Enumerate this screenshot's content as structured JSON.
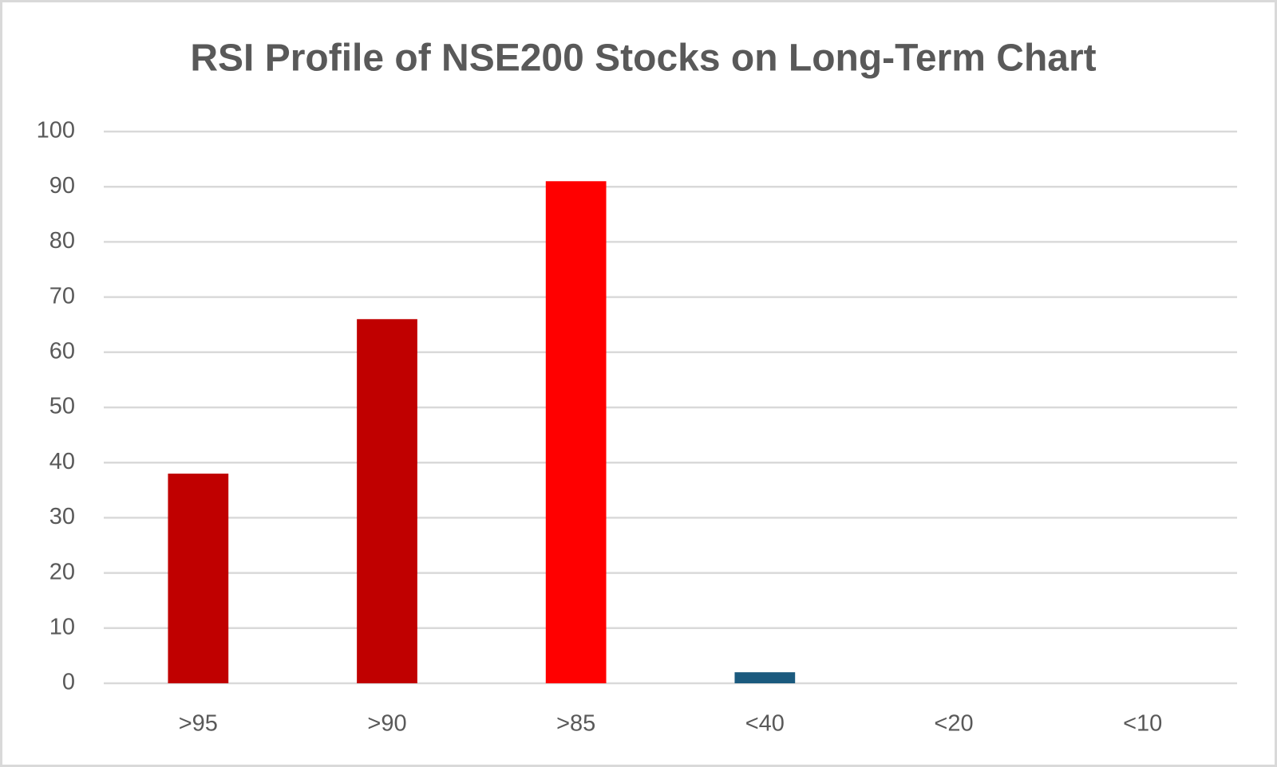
{
  "chart_data": {
    "type": "bar",
    "title": "RSI Profile of NSE200 Stocks on Long-Term Chart",
    "categories": [
      ">95",
      ">90",
      ">85",
      "<40",
      "<20",
      "<10"
    ],
    "values": [
      38,
      66,
      91,
      2,
      0,
      0
    ],
    "colors": [
      "#c00000",
      "#c00000",
      "#ff0000",
      "#1b5a7e",
      "#1b5a7e",
      "#1b5a7e"
    ],
    "ylim": [
      0,
      100
    ],
    "yticks": [
      0,
      10,
      20,
      30,
      40,
      50,
      60,
      70,
      80,
      90,
      100
    ],
    "grid": true
  }
}
